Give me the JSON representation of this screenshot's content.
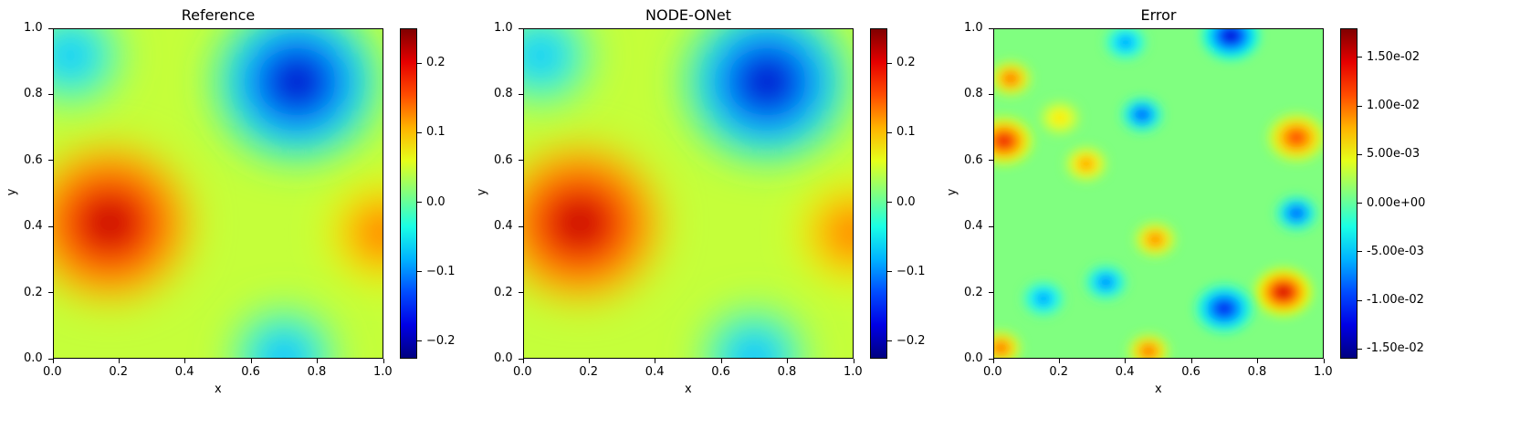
{
  "chart_data": [
    {
      "type": "heatmap",
      "title": "Reference",
      "xlabel": "x",
      "ylabel": "y",
      "xlim": [
        0.0,
        1.0
      ],
      "ylim": [
        0.0,
        1.0
      ],
      "xticks": [
        "0.0",
        "0.2",
        "0.4",
        "0.6",
        "0.8",
        "1.0"
      ],
      "yticks": [
        "0.0",
        "0.2",
        "0.4",
        "0.6",
        "0.8",
        "1.0"
      ],
      "colormap": "jet",
      "colorbar": {
        "range": [
          -0.225,
          0.25
        ],
        "ticks": [
          -0.2,
          -0.1,
          0.0,
          0.1,
          0.2
        ],
        "tick_labels": [
          "−0.2",
          "−0.1",
          "0.0",
          "0.1",
          "0.2"
        ]
      },
      "features": [
        {
          "kind": "maximum",
          "x": 0.17,
          "y": 0.41,
          "value": 0.24
        },
        {
          "kind": "minimum",
          "x": 0.74,
          "y": 0.84,
          "value": -0.22
        },
        {
          "kind": "maximum",
          "x": 1.0,
          "y": 0.38,
          "value": 0.16
        },
        {
          "kind": "minimum",
          "x": 0.05,
          "y": 0.92,
          "value": -0.11
        },
        {
          "kind": "minimum",
          "x": 0.7,
          "y": 0.0,
          "value": -0.12
        }
      ]
    },
    {
      "type": "heatmap",
      "title": "NODE-ONet",
      "xlabel": "x",
      "ylabel": "y",
      "xlim": [
        0.0,
        1.0
      ],
      "ylim": [
        0.0,
        1.0
      ],
      "xticks": [
        "0.0",
        "0.2",
        "0.4",
        "0.6",
        "0.8",
        "1.0"
      ],
      "yticks": [
        "0.0",
        "0.2",
        "0.4",
        "0.6",
        "0.8",
        "1.0"
      ],
      "colormap": "jet",
      "colorbar": {
        "range": [
          -0.225,
          0.25
        ],
        "ticks": [
          -0.2,
          -0.1,
          0.0,
          0.1,
          0.2
        ],
        "tick_labels": [
          "−0.2",
          "−0.1",
          "0.0",
          "0.1",
          "0.2"
        ]
      },
      "features": [
        {
          "kind": "maximum",
          "x": 0.17,
          "y": 0.41,
          "value": 0.24
        },
        {
          "kind": "minimum",
          "x": 0.74,
          "y": 0.84,
          "value": -0.22
        },
        {
          "kind": "maximum",
          "x": 1.0,
          "y": 0.38,
          "value": 0.16
        },
        {
          "kind": "minimum",
          "x": 0.05,
          "y": 0.92,
          "value": -0.11
        },
        {
          "kind": "minimum",
          "x": 0.7,
          "y": 0.0,
          "value": -0.12
        }
      ]
    },
    {
      "type": "heatmap",
      "title": "Error",
      "xlabel": "x",
      "ylabel": "y",
      "xlim": [
        0.0,
        1.0
      ],
      "ylim": [
        0.0,
        1.0
      ],
      "xticks": [
        "0.0",
        "0.2",
        "0.4",
        "0.6",
        "0.8",
        "1.0"
      ],
      "yticks": [
        "0.0",
        "0.2",
        "0.4",
        "0.6",
        "0.8",
        "1.0"
      ],
      "colormap": "jet",
      "colorbar": {
        "range": [
          -0.016,
          0.018
        ],
        "ticks": [
          -0.015,
          -0.01,
          -0.005,
          0.0,
          0.005,
          0.01,
          0.015
        ],
        "tick_labels": [
          "-1.50e-02",
          "-1.00e-02",
          "-5.00e-03",
          "0.00e+00",
          "5.00e-03",
          "1.00e-02",
          "1.50e-02"
        ]
      },
      "features": [
        {
          "kind": "maximum",
          "x": 0.88,
          "y": 0.2,
          "value": 0.017
        },
        {
          "kind": "maximum",
          "x": 0.03,
          "y": 0.66,
          "value": 0.015
        },
        {
          "kind": "maximum",
          "x": 0.92,
          "y": 0.67,
          "value": 0.013
        },
        {
          "kind": "maximum",
          "x": 0.28,
          "y": 0.59,
          "value": 0.01
        },
        {
          "kind": "maximum",
          "x": 0.49,
          "y": 0.36,
          "value": 0.011
        },
        {
          "kind": "maximum",
          "x": 0.05,
          "y": 0.85,
          "value": 0.012
        },
        {
          "kind": "maximum",
          "x": 0.2,
          "y": 0.73,
          "value": 0.007
        },
        {
          "kind": "maximum",
          "x": 0.47,
          "y": 0.02,
          "value": 0.012
        },
        {
          "kind": "maximum",
          "x": 0.02,
          "y": 0.03,
          "value": 0.012
        },
        {
          "kind": "minimum",
          "x": 0.72,
          "y": 0.98,
          "value": -0.015
        },
        {
          "kind": "minimum",
          "x": 0.45,
          "y": 0.74,
          "value": -0.011
        },
        {
          "kind": "minimum",
          "x": 0.7,
          "y": 0.15,
          "value": -0.013
        },
        {
          "kind": "minimum",
          "x": 0.34,
          "y": 0.23,
          "value": -0.009
        },
        {
          "kind": "minimum",
          "x": 0.92,
          "y": 0.44,
          "value": -0.011
        },
        {
          "kind": "minimum",
          "x": 0.15,
          "y": 0.18,
          "value": -0.008
        },
        {
          "kind": "minimum",
          "x": 0.4,
          "y": 0.96,
          "value": -0.008
        }
      ]
    }
  ]
}
